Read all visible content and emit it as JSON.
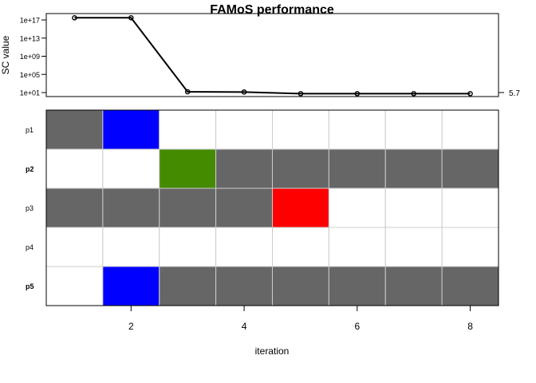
{
  "chart_data": [
    {
      "type": "line",
      "title": "FAMoS performance",
      "ylabel": "SC value",
      "y_scale": "log",
      "x": [
        1,
        2,
        3,
        4,
        5,
        6,
        7,
        8
      ],
      "series": [
        {
          "values": [
            3e+17,
            3e+17,
            15,
            13,
            5.7,
            5.7,
            5.7,
            5.7
          ]
        }
      ],
      "y_ticks": [
        {
          "value": 10.0,
          "label": "1e+01"
        },
        {
          "value": 100000.0,
          "label": "1e+05"
        },
        {
          "value": 1000000000.0,
          "label": "1e+09"
        },
        {
          "value": 10000000000000.0,
          "label": "1e+13"
        },
        {
          "value": 1e+17,
          "label": "1e+17"
        }
      ],
      "right_annotation": "5.7",
      "color": "#000000"
    },
    {
      "type": "heatmap",
      "xlabel": "iteration",
      "x_ticks": [
        "2",
        "4",
        "6",
        "8"
      ],
      "rows": [
        {
          "label": "p1",
          "bold": false,
          "cells": [
            "in",
            "added",
            "out",
            "out",
            "out",
            "out",
            "out",
            "out"
          ]
        },
        {
          "label": "p2",
          "bold": true,
          "cells": [
            "out",
            "out",
            "changed",
            "in",
            "in",
            "in",
            "in",
            "in"
          ]
        },
        {
          "label": "p3",
          "bold": false,
          "cells": [
            "in",
            "in",
            "in",
            "in",
            "removed",
            "out",
            "out",
            "out"
          ]
        },
        {
          "label": "p4",
          "bold": false,
          "cells": [
            "out",
            "out",
            "out",
            "out",
            "out",
            "out",
            "out",
            "out"
          ]
        },
        {
          "label": "p5",
          "bold": true,
          "cells": [
            "out",
            "added",
            "in",
            "in",
            "in",
            "in",
            "in",
            "in"
          ]
        }
      ],
      "colors": {
        "in": "#666666",
        "out": "#ffffff",
        "added": "#0000ff",
        "changed": "#458b00",
        "removed": "#ff0000",
        "grid": "#cccccc"
      }
    }
  ]
}
